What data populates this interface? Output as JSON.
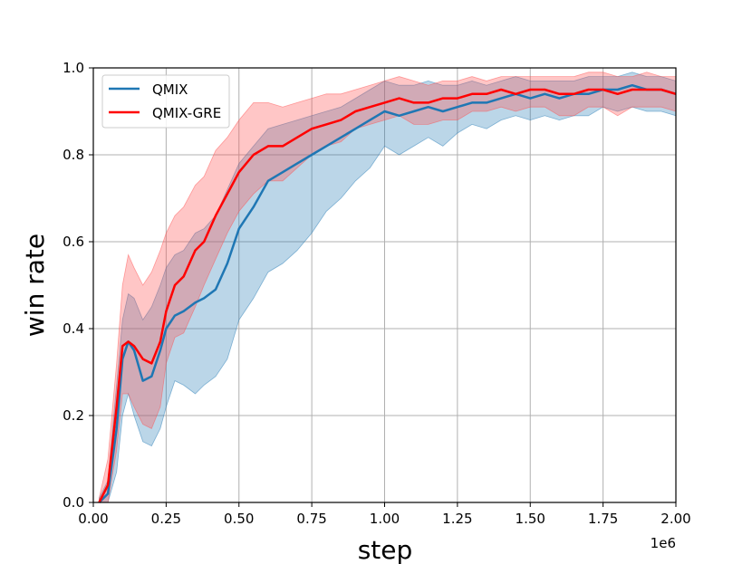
{
  "chart_data": {
    "type": "line",
    "xlabel": "step",
    "ylabel": "win rate",
    "x_offset_label": "1e6",
    "xlim": [
      0,
      2.0
    ],
    "ylim": [
      0,
      1.0
    ],
    "x_ticks": [
      "0.00",
      "0.25",
      "0.50",
      "0.75",
      "1.00",
      "1.25",
      "1.50",
      "1.75",
      "2.00"
    ],
    "y_ticks": [
      "0.0",
      "0.2",
      "0.4",
      "0.6",
      "0.8",
      "1.0"
    ],
    "grid": true,
    "legend_position": "top-left",
    "series": [
      {
        "name": "QMIX",
        "color": "#1f77b4",
        "band_color": "#1f77b4",
        "x": [
          0.02,
          0.05,
          0.08,
          0.1,
          0.12,
          0.14,
          0.17,
          0.2,
          0.23,
          0.25,
          0.28,
          0.31,
          0.35,
          0.38,
          0.42,
          0.46,
          0.5,
          0.55,
          0.6,
          0.65,
          0.7,
          0.75,
          0.8,
          0.85,
          0.9,
          0.95,
          1.0,
          1.05,
          1.1,
          1.15,
          1.2,
          1.25,
          1.3,
          1.35,
          1.4,
          1.45,
          1.5,
          1.55,
          1.6,
          1.65,
          1.7,
          1.75,
          1.8,
          1.85,
          1.9,
          1.95,
          2.0
        ],
        "y": [
          0.0,
          0.02,
          0.17,
          0.33,
          0.37,
          0.35,
          0.28,
          0.29,
          0.35,
          0.4,
          0.43,
          0.44,
          0.46,
          0.47,
          0.49,
          0.55,
          0.63,
          0.68,
          0.74,
          0.76,
          0.78,
          0.8,
          0.82,
          0.84,
          0.86,
          0.88,
          0.9,
          0.89,
          0.9,
          0.91,
          0.9,
          0.91,
          0.92,
          0.92,
          0.93,
          0.94,
          0.93,
          0.94,
          0.93,
          0.94,
          0.94,
          0.95,
          0.95,
          0.96,
          0.95,
          0.95,
          0.94
        ],
        "lower": [
          0.0,
          0.0,
          0.07,
          0.2,
          0.25,
          0.2,
          0.14,
          0.13,
          0.17,
          0.22,
          0.28,
          0.27,
          0.25,
          0.27,
          0.29,
          0.33,
          0.42,
          0.47,
          0.53,
          0.55,
          0.58,
          0.62,
          0.67,
          0.7,
          0.74,
          0.77,
          0.82,
          0.8,
          0.82,
          0.84,
          0.82,
          0.85,
          0.87,
          0.86,
          0.88,
          0.89,
          0.88,
          0.89,
          0.88,
          0.89,
          0.89,
          0.91,
          0.9,
          0.91,
          0.9,
          0.9,
          0.89
        ],
        "upper": [
          0.01,
          0.05,
          0.27,
          0.42,
          0.48,
          0.47,
          0.42,
          0.45,
          0.5,
          0.54,
          0.57,
          0.58,
          0.62,
          0.63,
          0.66,
          0.72,
          0.78,
          0.82,
          0.86,
          0.87,
          0.88,
          0.89,
          0.9,
          0.91,
          0.93,
          0.95,
          0.97,
          0.96,
          0.96,
          0.97,
          0.96,
          0.96,
          0.97,
          0.96,
          0.97,
          0.98,
          0.97,
          0.97,
          0.97,
          0.97,
          0.98,
          0.98,
          0.98,
          0.99,
          0.98,
          0.98,
          0.97
        ]
      },
      {
        "name": "QMIX-GRE",
        "color": "#ff0000",
        "band_color": "#ff4d4d",
        "x": [
          0.02,
          0.05,
          0.08,
          0.1,
          0.12,
          0.14,
          0.17,
          0.2,
          0.23,
          0.25,
          0.28,
          0.31,
          0.35,
          0.38,
          0.42,
          0.46,
          0.5,
          0.55,
          0.6,
          0.65,
          0.7,
          0.75,
          0.8,
          0.85,
          0.9,
          0.95,
          1.0,
          1.05,
          1.1,
          1.15,
          1.2,
          1.25,
          1.3,
          1.35,
          1.4,
          1.45,
          1.5,
          1.55,
          1.6,
          1.65,
          1.7,
          1.75,
          1.8,
          1.85,
          1.9,
          1.95,
          2.0
        ],
        "y": [
          0.0,
          0.04,
          0.22,
          0.36,
          0.37,
          0.36,
          0.33,
          0.32,
          0.37,
          0.44,
          0.5,
          0.52,
          0.58,
          0.6,
          0.66,
          0.71,
          0.76,
          0.8,
          0.82,
          0.82,
          0.84,
          0.86,
          0.87,
          0.88,
          0.9,
          0.91,
          0.92,
          0.93,
          0.92,
          0.92,
          0.93,
          0.93,
          0.94,
          0.94,
          0.95,
          0.94,
          0.95,
          0.95,
          0.94,
          0.94,
          0.95,
          0.95,
          0.94,
          0.95,
          0.95,
          0.95,
          0.94
        ],
        "lower": [
          0.0,
          0.0,
          0.12,
          0.25,
          0.25,
          0.22,
          0.18,
          0.17,
          0.22,
          0.32,
          0.38,
          0.39,
          0.45,
          0.5,
          0.56,
          0.62,
          0.67,
          0.71,
          0.74,
          0.74,
          0.77,
          0.8,
          0.82,
          0.83,
          0.86,
          0.87,
          0.88,
          0.89,
          0.87,
          0.87,
          0.88,
          0.88,
          0.9,
          0.9,
          0.91,
          0.9,
          0.91,
          0.91,
          0.89,
          0.89,
          0.91,
          0.91,
          0.89,
          0.91,
          0.91,
          0.91,
          0.9
        ],
        "upper": [
          0.01,
          0.1,
          0.32,
          0.5,
          0.57,
          0.54,
          0.5,
          0.53,
          0.58,
          0.62,
          0.66,
          0.68,
          0.73,
          0.75,
          0.81,
          0.84,
          0.88,
          0.92,
          0.92,
          0.91,
          0.92,
          0.93,
          0.94,
          0.94,
          0.95,
          0.96,
          0.97,
          0.98,
          0.97,
          0.96,
          0.97,
          0.97,
          0.98,
          0.97,
          0.98,
          0.98,
          0.98,
          0.98,
          0.98,
          0.98,
          0.99,
          0.99,
          0.98,
          0.98,
          0.99,
          0.98,
          0.98
        ]
      }
    ]
  }
}
